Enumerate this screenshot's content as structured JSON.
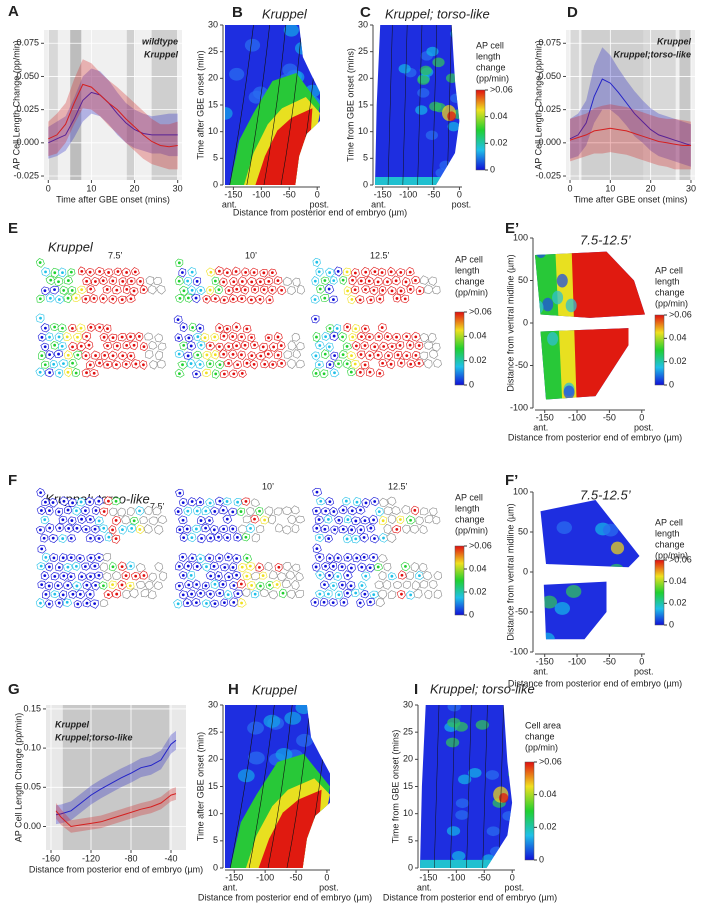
{
  "chart_data": [
    {
      "type": "line",
      "panel": "A",
      "xlabel": "Time after GBE onset (mins)",
      "ylabel": "AP Cell Length Change (pp/min)",
      "grid": true,
      "xlim": [
        -1,
        31
      ],
      "ylim": [
        -0.028,
        0.085
      ],
      "xticks": [
        0,
        10,
        20,
        30
      ],
      "yticks": [
        -0.025,
        {
          "value": 0,
          "label": "0.000"
        },
        0.025,
        {
          "value": 0.05,
          "label": "0.050"
        },
        0.075
      ],
      "x": [
        0,
        2,
        4,
        6,
        8,
        10,
        12,
        14,
        16,
        18,
        20,
        22,
        24,
        26,
        28,
        30
      ],
      "series": [
        {
          "name": "wildtype",
          "color": "#2323c8",
          "values": [
            0.0,
            0.003,
            0.006,
            0.018,
            0.032,
            0.038,
            0.036,
            0.03,
            0.022,
            0.015,
            0.01,
            0.007,
            0.006,
            0.006,
            0.006,
            0.006
          ],
          "lower": [
            -0.012,
            -0.01,
            -0.006,
            0.004,
            0.016,
            0.022,
            0.02,
            0.014,
            0.006,
            0.0,
            -0.004,
            -0.006,
            -0.008,
            -0.008,
            -0.01,
            -0.01
          ],
          "upper": [
            0.012,
            0.016,
            0.02,
            0.034,
            0.05,
            0.056,
            0.054,
            0.047,
            0.038,
            0.03,
            0.025,
            0.022,
            0.02,
            0.021,
            0.022,
            0.022
          ]
        },
        {
          "name": "Kruppel",
          "color": "#d42020",
          "values": [
            0.003,
            0.006,
            0.014,
            0.03,
            0.044,
            0.042,
            0.036,
            0.03,
            0.025,
            0.018,
            0.012,
            0.006,
            0.001,
            -0.002,
            -0.003,
            -0.002
          ],
          "lower": [
            -0.01,
            -0.008,
            0.0,
            0.014,
            0.026,
            0.025,
            0.02,
            0.013,
            0.007,
            0.0,
            -0.006,
            -0.012,
            -0.016,
            -0.018,
            -0.02,
            -0.02
          ],
          "upper": [
            0.016,
            0.022,
            0.03,
            0.048,
            0.063,
            0.06,
            0.053,
            0.047,
            0.042,
            0.036,
            0.03,
            0.024,
            0.018,
            0.014,
            0.014,
            0.016
          ]
        }
      ]
    },
    {
      "type": "heatmap",
      "panel": "B",
      "title": "Kruppel",
      "ylabel": "Time after GBE onset (min)",
      "xlabel": "Distance from posterior end of embryo (µm)",
      "xlim": [
        -165,
        5
      ],
      "ylim": [
        0,
        30
      ],
      "xticks": [
        -150,
        -100,
        -50,
        0
      ],
      "yticks": [
        0,
        5,
        10,
        15,
        20,
        25,
        30
      ],
      "x_end_labels": [
        "ant.",
        "post."
      ]
    },
    {
      "type": "heatmap",
      "panel": "C",
      "title": "Kruppel; torso-like",
      "ylabel": "Time from GBE onset (mins)",
      "xlim": [
        -165,
        5
      ],
      "ylim": [
        0,
        30
      ],
      "xticks": [
        -150,
        -100,
        -50,
        0
      ],
      "yticks": [
        0,
        5,
        10,
        15,
        20,
        25,
        30
      ],
      "x_end_labels": [
        "ant.",
        "post."
      ],
      "colorbar": {
        "title_lines": [
          "AP cell",
          "length",
          "change",
          "(pp/min)"
        ],
        "ticks": [
          {
            "value": 0.06,
            "label": ">0.06"
          },
          0.04,
          0.02,
          0
        ]
      }
    },
    {
      "type": "line",
      "panel": "D",
      "xlabel": "Time after GBE onset (mins)",
      "ylabel": "AP Cell Length Change (pp/min)",
      "grid": true,
      "xlim": [
        -1,
        31
      ],
      "ylim": [
        -0.028,
        0.085
      ],
      "xticks": [
        0,
        10,
        20,
        30
      ],
      "yticks": [
        -0.025,
        {
          "value": 0,
          "label": "0.000"
        },
        0.025,
        {
          "value": 0.05,
          "label": "0.050"
        },
        0.075
      ],
      "x": [
        0,
        2,
        4,
        6,
        8,
        10,
        12,
        14,
        16,
        18,
        20,
        22,
        24,
        26,
        28,
        30
      ],
      "series": [
        {
          "name": "Kruppel",
          "color": "#2323c8",
          "values": [
            0.003,
            0.006,
            0.015,
            0.035,
            0.048,
            0.045,
            0.038,
            0.03,
            0.022,
            0.016,
            0.01,
            0.006,
            0.004,
            0.002,
            0.0,
            -0.002
          ],
          "lower": [
            -0.012,
            -0.01,
            -0.002,
            0.015,
            0.025,
            0.025,
            0.02,
            0.013,
            0.005,
            0.0,
            -0.006,
            -0.01,
            -0.012,
            -0.014,
            -0.016,
            -0.018
          ],
          "upper": [
            0.018,
            0.022,
            0.032,
            0.058,
            0.072,
            0.066,
            0.056,
            0.047,
            0.039,
            0.032,
            0.026,
            0.022,
            0.02,
            0.018,
            0.016,
            0.014
          ]
        },
        {
          "name": "Kruppel;torso-like",
          "color": "#d42020",
          "values": [
            0.002,
            0.004,
            0.006,
            0.009,
            0.01,
            0.011,
            0.01,
            0.009,
            0.007,
            0.005,
            0.003,
            0.001,
            0.0,
            -0.001,
            -0.002,
            -0.002
          ],
          "lower": [
            -0.014,
            -0.012,
            -0.01,
            -0.008,
            -0.008,
            -0.007,
            -0.008,
            -0.009,
            -0.011,
            -0.013,
            -0.015,
            -0.017,
            -0.018,
            -0.02,
            -0.02,
            -0.02
          ],
          "upper": [
            0.018,
            0.02,
            0.022,
            0.026,
            0.028,
            0.029,
            0.028,
            0.027,
            0.025,
            0.023,
            0.021,
            0.019,
            0.018,
            0.018,
            0.017,
            0.016
          ]
        }
      ]
    },
    {
      "type": "heatmap",
      "panel": "E’",
      "title": "7.5-12.5’",
      "ylabel": "Distance from ventral midline (µm)",
      "xlabel": "Distance from posterior end of embryo (µm)",
      "xlim": [
        -165,
        5
      ],
      "ylim": [
        -100,
        100
      ],
      "xticks": [
        -150,
        -100,
        -50,
        0
      ],
      "yticks": [
        -100,
        -50,
        0,
        50,
        100
      ],
      "x_end_labels": [
        "ant.",
        "post."
      ],
      "colorbar": {
        "title_lines": [
          "AP cell",
          "length",
          "change",
          "(pp/min)"
        ],
        "ticks": [
          {
            "value": 0.06,
            "label": ">0.06"
          },
          0.04,
          0.02,
          0
        ]
      }
    },
    {
      "type": "heatmap",
      "panel": "F’",
      "title": "7.5-12.5’",
      "ylabel": "Distance from ventral midline (µm)",
      "xlabel": "Distance from posterior end of embryo (µm)",
      "xlim": [
        -165,
        5
      ],
      "ylim": [
        -100,
        100
      ],
      "xticks": [
        -150,
        -100,
        -50,
        0
      ],
      "yticks": [
        -100,
        -50,
        0,
        50,
        100
      ],
      "x_end_labels": [
        "ant.",
        "post."
      ],
      "colorbar": {
        "title_lines": [
          "AP cell",
          "length",
          "change",
          "(pp/min)"
        ],
        "ticks": [
          {
            "value": 0.06,
            "label": ">0.06"
          },
          0.04,
          0.02,
          0
        ]
      }
    },
    {
      "type": "line",
      "panel": "G",
      "xlabel": "Distance from posterior end of embryo (µm)",
      "ylabel": "AP Cell Length Change (pp/min)",
      "grid": true,
      "xlim": [
        -165,
        -25
      ],
      "ylim": [
        -0.03,
        0.155
      ],
      "xticks": [
        -160,
        -120,
        -80,
        -40
      ],
      "yticks": [
        {
          "value": 0,
          "label": "0.00"
        },
        {
          "value": 0.05,
          "label": "0.05"
        },
        {
          "value": 0.1,
          "label": "0.10"
        },
        {
          "value": 0.15,
          "label": "0.15"
        }
      ],
      "x": [
        -155,
        -150,
        -140,
        -130,
        -120,
        -110,
        -100,
        -90,
        -80,
        -70,
        -60,
        -50,
        -45,
        -40,
        -35
      ],
      "series": [
        {
          "name": "Kruppel",
          "color": "#2323c8",
          "values": [
            0.015,
            0.016,
            0.02,
            0.03,
            0.04,
            0.048,
            0.055,
            0.062,
            0.068,
            0.075,
            0.078,
            0.085,
            0.095,
            0.105,
            0.11
          ],
          "lower": [
            0.003,
            0.004,
            0.008,
            0.018,
            0.028,
            0.036,
            0.043,
            0.05,
            0.056,
            0.063,
            0.066,
            0.073,
            0.083,
            0.093,
            0.098
          ],
          "upper": [
            0.027,
            0.028,
            0.032,
            0.042,
            0.052,
            0.06,
            0.067,
            0.074,
            0.08,
            0.087,
            0.09,
            0.097,
            0.107,
            0.117,
            0.122
          ]
        },
        {
          "name": "Kruppel;torso-like",
          "color": "#d42020",
          "values": [
            0.02,
            0.012,
            0.0,
            0.002,
            0.004,
            0.006,
            0.01,
            0.014,
            0.018,
            0.022,
            0.025,
            0.03,
            0.035,
            0.04,
            0.042
          ],
          "lower": [
            0.01,
            0.002,
            -0.008,
            -0.006,
            -0.004,
            -0.002,
            0.002,
            0.006,
            0.01,
            0.014,
            0.017,
            0.022,
            0.027,
            0.032,
            0.034
          ],
          "upper": [
            0.03,
            0.022,
            0.008,
            0.01,
            0.012,
            0.014,
            0.018,
            0.022,
            0.026,
            0.03,
            0.033,
            0.038,
            0.043,
            0.048,
            0.05
          ]
        }
      ]
    },
    {
      "type": "heatmap",
      "panel": "H",
      "title": "Kruppel",
      "ylabel": "Time after GBE onset (min)",
      "xlabel": "Distance from posterior end of embryo (µm)",
      "xlim": [
        -165,
        5
      ],
      "ylim": [
        0,
        30
      ],
      "xticks": [
        -150,
        -100,
        -50,
        0
      ],
      "yticks": [
        0,
        5,
        10,
        15,
        20,
        25,
        30
      ],
      "x_end_labels": [
        "ant.",
        "post."
      ]
    },
    {
      "type": "heatmap",
      "panel": "I",
      "title": "Kruppel; torso-like",
      "ylabel": "Time from GBE onset (mins)",
      "xlabel": "Distance from posterior end of embryo (µm)",
      "xlim": [
        -165,
        5
      ],
      "ylim": [
        0,
        30
      ],
      "xticks": [
        -150,
        -100,
        -50,
        0
      ],
      "yticks": [
        0,
        5,
        10,
        15,
        20,
        25,
        30
      ],
      "x_end_labels": [
        "ant.",
        "post."
      ],
      "colorbar": {
        "title_lines": [
          "Cell area",
          "change",
          "(pp/min)"
        ],
        "ticks": [
          {
            "value": 0.06,
            "label": ">0.06"
          },
          0.04,
          0.02,
          0
        ]
      }
    }
  ],
  "cell_panels": [
    {
      "panel": "E",
      "title": "Kruppel",
      "time_labels": [
        "7.5’",
        "10’",
        "12.5’"
      ],
      "colorbar": {
        "title_lines": [
          "AP cell",
          "length",
          "change",
          "(pp/min)"
        ],
        "ticks": [
          {
            "value": 0.06,
            "label": ">0.06"
          },
          0.04,
          0.02,
          0
        ]
      }
    },
    {
      "panel": "F",
      "title": "Kruppel; torso-like",
      "time_labels": [
        "7.5’",
        "10’",
        "12.5’"
      ],
      "colorbar": {
        "title_lines": [
          "AP cell",
          "length",
          "change",
          "(pp/min)"
        ],
        "ticks": [
          {
            "value": 0.06,
            "label": ">0.06"
          },
          0.04,
          0.02,
          0
        ]
      }
    }
  ]
}
